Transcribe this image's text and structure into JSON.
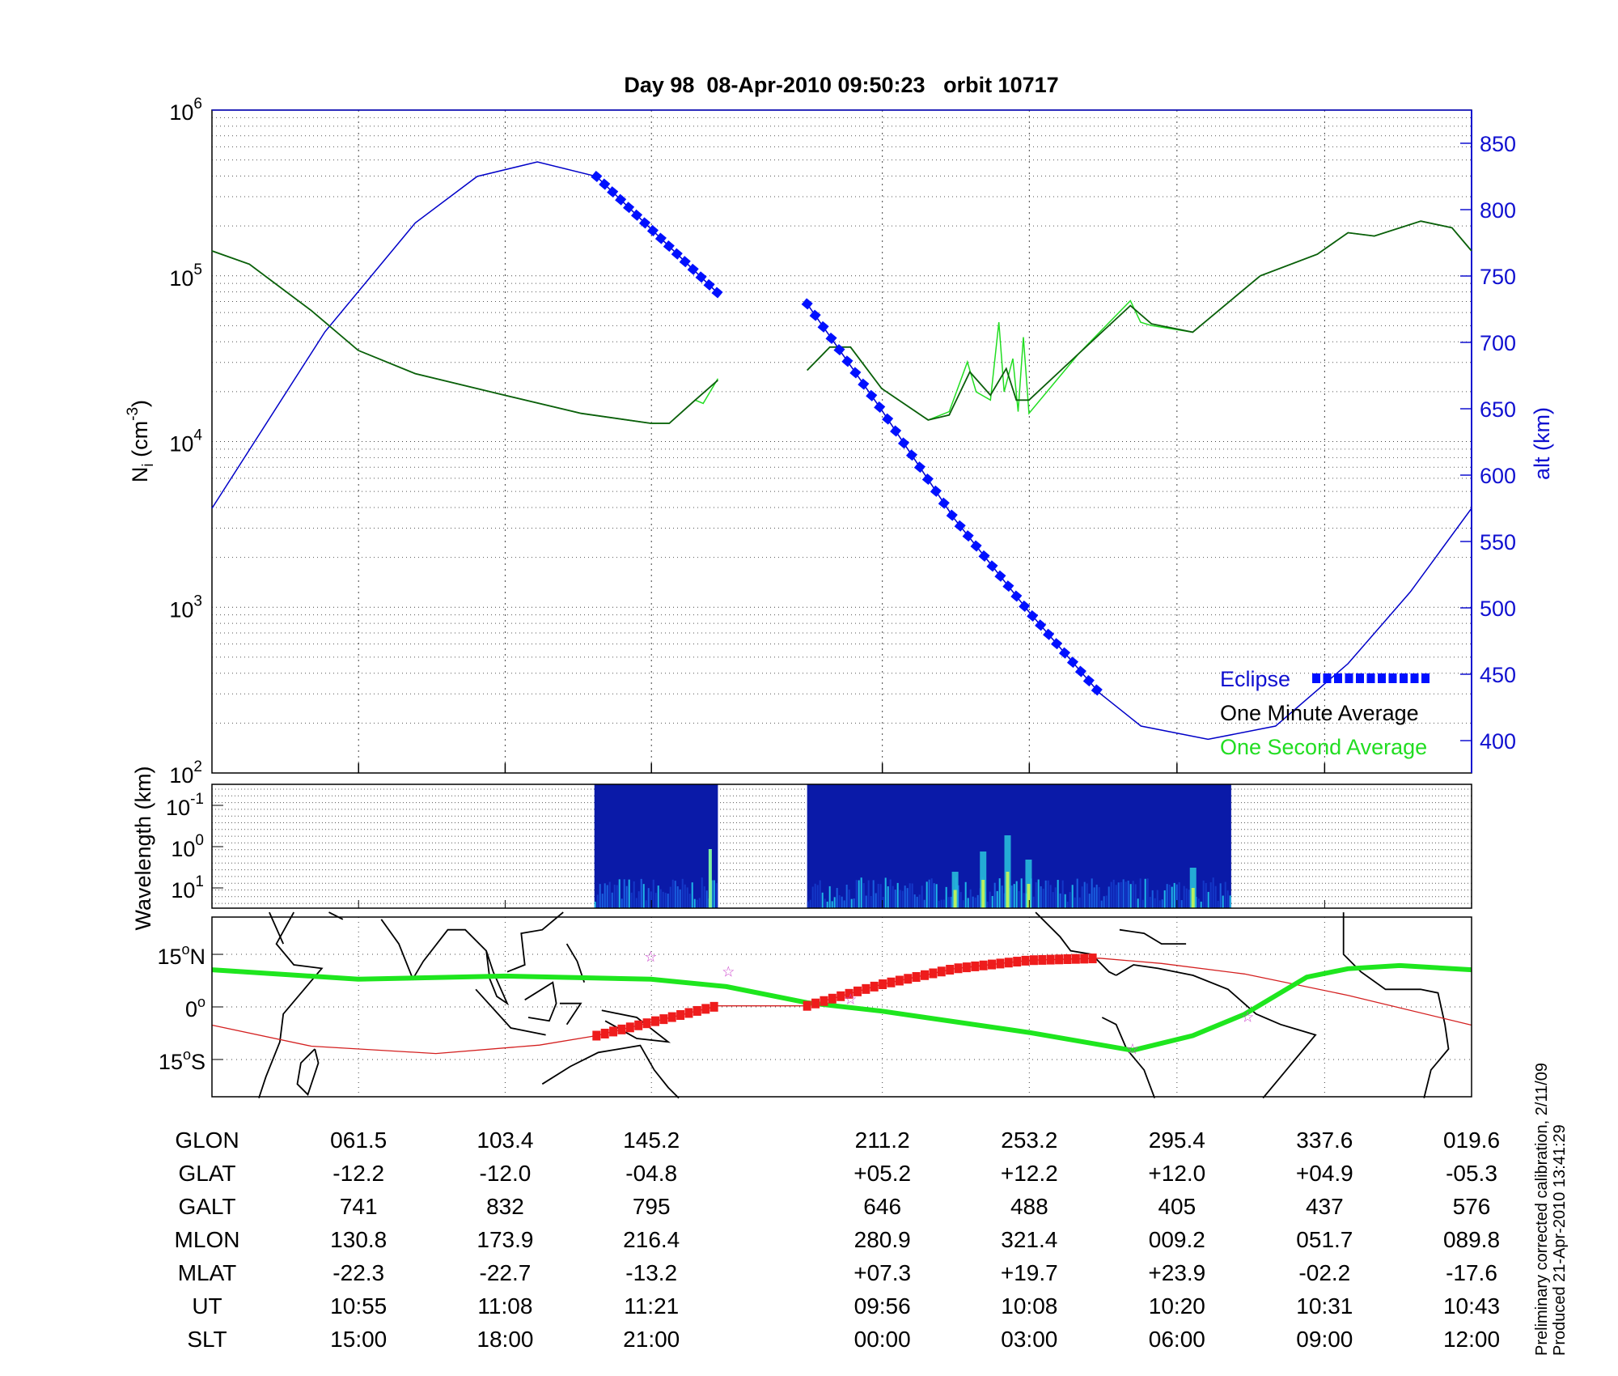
{
  "title": "Day 98  08-Apr-2010 09:50:23   orbit 10717",
  "footnote": [
    "Preliminary corrected calibration, 2/11/09",
    "Produced 21-Apr-2010 13:41:29"
  ],
  "colors": {
    "altitude": "#0000c8",
    "eclipse": "#0010ff",
    "one_minute": "#0b5e0b",
    "one_second": "#22dd22",
    "track": "#1ee61e",
    "footprint": "#d42020",
    "stars": "#cc44cc"
  },
  "chart_data": [
    {
      "type": "line",
      "panel": "density",
      "xlabel": "",
      "x_units": "geographic longitude (deg)",
      "xlim": [
        19.6,
        379.6
      ],
      "ylabel": "N",
      "ylabel_sub": "i",
      "ylabel_unit": " (cm",
      "ylabel_sup": "-3",
      "ylabel_close": ")",
      "yscale": "log",
      "ylim": [
        100,
        1000000
      ],
      "ytick_exponents": [
        "2",
        "3",
        "4",
        "5",
        "6"
      ],
      "y2label": "alt (km)",
      "y2lim": [
        375,
        875
      ],
      "y2ticks": [
        "400",
        "450",
        "500",
        "550",
        "600",
        "650",
        "700",
        "750",
        "800",
        "850"
      ],
      "grid": true,
      "legend_position": "bottom-right",
      "legend": {
        "eclipse": "Eclipse",
        "one_minute": "One Minute Average",
        "one_second": "One Second Average"
      },
      "altitude_km": [
        [
          [
            19.6,
            575
          ],
          [
            51.9,
            708
          ],
          [
            77.7,
            790
          ],
          [
            95.4,
            825
          ],
          [
            112.6,
            836
          ],
          [
            129.5,
            825
          ],
          [
            164.2,
            737
          ]
        ],
        [
          [
            189.7,
            729
          ],
          [
            211,
            649
          ],
          [
            231.8,
            567
          ],
          [
            253.1,
            497
          ],
          [
            273.2,
            436
          ],
          [
            285.1,
            411
          ],
          [
            304.3,
            401
          ],
          [
            323.6,
            411
          ],
          [
            344.3,
            458
          ],
          [
            362.1,
            512
          ],
          [
            379.6,
            575
          ]
        ]
      ],
      "eclipse_lon_ranges": [
        [
          129.5,
          164.2
        ],
        [
          189.7,
          273.2
        ]
      ],
      "one_minute_log10_Ni": [
        [
          [
            19.6,
            5.15
          ],
          [
            30.3,
            5.07
          ],
          [
            48.0,
            4.79
          ],
          [
            61.4,
            4.55
          ],
          [
            77.7,
            4.41
          ],
          [
            103.2,
            4.28
          ],
          [
            125.1,
            4.17
          ],
          [
            145.0,
            4.11
          ],
          [
            150.3,
            4.11
          ],
          [
            157.7,
            4.25
          ],
          [
            164.2,
            4.37
          ]
        ],
        [
          [
            189.7,
            4.43
          ],
          [
            196.2,
            4.57
          ],
          [
            202.1,
            4.57
          ],
          [
            211.0,
            4.32
          ],
          [
            224.3,
            4.13
          ],
          [
            230.3,
            4.16
          ],
          [
            236.2,
            4.42
          ],
          [
            242.1,
            4.28
          ],
          [
            246.6,
            4.44
          ],
          [
            249.5,
            4.25
          ],
          [
            253.1,
            4.25
          ],
          [
            267.3,
            4.53
          ],
          [
            282.1,
            4.82
          ],
          [
            288.1,
            4.71
          ],
          [
            299.9,
            4.66
          ],
          [
            319.2,
            5.0
          ],
          [
            335.5,
            5.13
          ],
          [
            344.3,
            5.26
          ],
          [
            351.8,
            5.24
          ],
          [
            365.1,
            5.33
          ],
          [
            374.0,
            5.29
          ],
          [
            379.6,
            5.15
          ]
        ]
      ],
      "one_second_log10_Ni": [
        [
          [
            19.6,
            5.15
          ],
          [
            30.3,
            5.07
          ],
          [
            48.0,
            4.79
          ],
          [
            61.4,
            4.55
          ],
          [
            77.7,
            4.41
          ],
          [
            103.2,
            4.28
          ],
          [
            125.1,
            4.17
          ],
          [
            145.0,
            4.11
          ],
          [
            150.3,
            4.11
          ],
          [
            157.7,
            4.25
          ],
          [
            160,
            4.23
          ],
          [
            164.2,
            4.38
          ]
        ],
        [
          [
            189.7,
            4.43
          ],
          [
            196.2,
            4.57
          ],
          [
            202.1,
            4.57
          ],
          [
            211.0,
            4.32
          ],
          [
            224.3,
            4.13
          ],
          [
            230.3,
            4.18
          ],
          [
            235.5,
            4.48
          ],
          [
            238,
            4.3
          ],
          [
            242.1,
            4.25
          ],
          [
            244.5,
            4.72
          ],
          [
            246,
            4.3
          ],
          [
            248.5,
            4.5
          ],
          [
            250,
            4.18
          ],
          [
            251.5,
            4.63
          ],
          [
            253.1,
            4.17
          ],
          [
            267.3,
            4.53
          ],
          [
            282.1,
            4.85
          ],
          [
            285,
            4.72
          ],
          [
            288.1,
            4.7
          ],
          [
            299.9,
            4.66
          ],
          [
            319.2,
            5.0
          ],
          [
            335.5,
            5.13
          ],
          [
            344.3,
            5.26
          ],
          [
            351.8,
            5.24
          ],
          [
            365.1,
            5.33
          ],
          [
            374.0,
            5.29
          ],
          [
            379.6,
            5.15
          ]
        ]
      ]
    },
    {
      "type": "heatmap",
      "panel": "spectrogram",
      "ylabel": "Wavelength (km)",
      "ytick_exponents": [
        "-1",
        "0",
        "1"
      ],
      "data_lon_ranges": [
        [
          128.9,
          164.2
        ],
        [
          189.7,
          310.9
        ]
      ]
    },
    {
      "type": "line",
      "panel": "map",
      "xlim": [
        19.6,
        379.6
      ],
      "ylim": [
        -25.6,
        25.6
      ],
      "yticks": [
        {
          "deg": "15",
          "hemi": "N"
        },
        {
          "deg": "0",
          "hemi": ""
        },
        {
          "deg": "15",
          "hemi": "S"
        }
      ],
      "track_lat": [
        [
          19.6,
          10.6
        ],
        [
          61.4,
          7.9
        ],
        [
          103.2,
          8.8
        ],
        [
          145.0,
          7.9
        ],
        [
          166.6,
          5.8
        ],
        [
          189.7,
          1.2
        ],
        [
          211.0,
          -1.2
        ],
        [
          253.1,
          -7.3
        ],
        [
          282.7,
          -12.4
        ],
        [
          299.9,
          -8.2
        ],
        [
          314.7,
          -2.1
        ],
        [
          332.5,
          8.5
        ],
        [
          344.3,
          10.9
        ],
        [
          359.1,
          11.8
        ],
        [
          379.6,
          10.6
        ]
      ],
      "footprint_lat": [
        [
          19.6,
          -5.2
        ],
        [
          48.0,
          -11.2
        ],
        [
          83.6,
          -13.3
        ],
        [
          113.2,
          -10.9
        ],
        [
          129.5,
          -8.2
        ],
        [
          145.8,
          -4.2
        ],
        [
          164.2,
          0.3
        ],
        [
          189.7,
          0.3
        ],
        [
          211.0,
          6.4
        ],
        [
          231.8,
          10.9
        ],
        [
          253.1,
          13.3
        ],
        [
          273.2,
          13.9
        ],
        [
          291.0,
          12.4
        ],
        [
          314.7,
          9.4
        ],
        [
          344.3,
          3.3
        ],
        [
          379.6,
          -5.2
        ]
      ],
      "stars": [
        [
          145.0,
          14.5
        ],
        [
          167.2,
          10.3
        ],
        [
          202.1,
          2.4
        ],
        [
          282.7,
          -11.8
        ],
        [
          315.6,
          -2.7
        ]
      ]
    }
  ],
  "table": {
    "tick_lon": [
      61.5,
      103.4,
      145.2,
      211.2,
      253.2,
      295.4,
      337.6,
      379.6
    ],
    "rows": [
      {
        "label": "GLON",
        "values": [
          "061.5",
          "103.4",
          "145.2",
          "211.2",
          "253.2",
          "295.4",
          "337.6",
          "019.6"
        ]
      },
      {
        "label": "GLAT",
        "values": [
          "-12.2",
          "-12.0",
          "-04.8",
          "+05.2",
          "+12.2",
          "+12.0",
          "+04.9",
          "-05.3"
        ]
      },
      {
        "label": "GALT",
        "values": [
          "741",
          "832",
          "795",
          "646",
          "488",
          "405",
          "437",
          "576"
        ]
      },
      {
        "label": "MLON",
        "values": [
          "130.8",
          "173.9",
          "216.4",
          "280.9",
          "321.4",
          "009.2",
          "051.7",
          "089.8"
        ]
      },
      {
        "label": "MLAT",
        "values": [
          "-22.3",
          "-22.7",
          "-13.2",
          "+07.3",
          "+19.7",
          "+23.9",
          "-02.2",
          "-17.6"
        ]
      },
      {
        "label": "UT",
        "values": [
          "10:55",
          "11:08",
          "11:21",
          "09:56",
          "10:08",
          "10:20",
          "10:31",
          "10:43"
        ]
      },
      {
        "label": "SLT",
        "values": [
          "15:00",
          "18:00",
          "21:00",
          "00:00",
          "03:00",
          "06:00",
          "09:00",
          "12:00"
        ]
      }
    ]
  }
}
